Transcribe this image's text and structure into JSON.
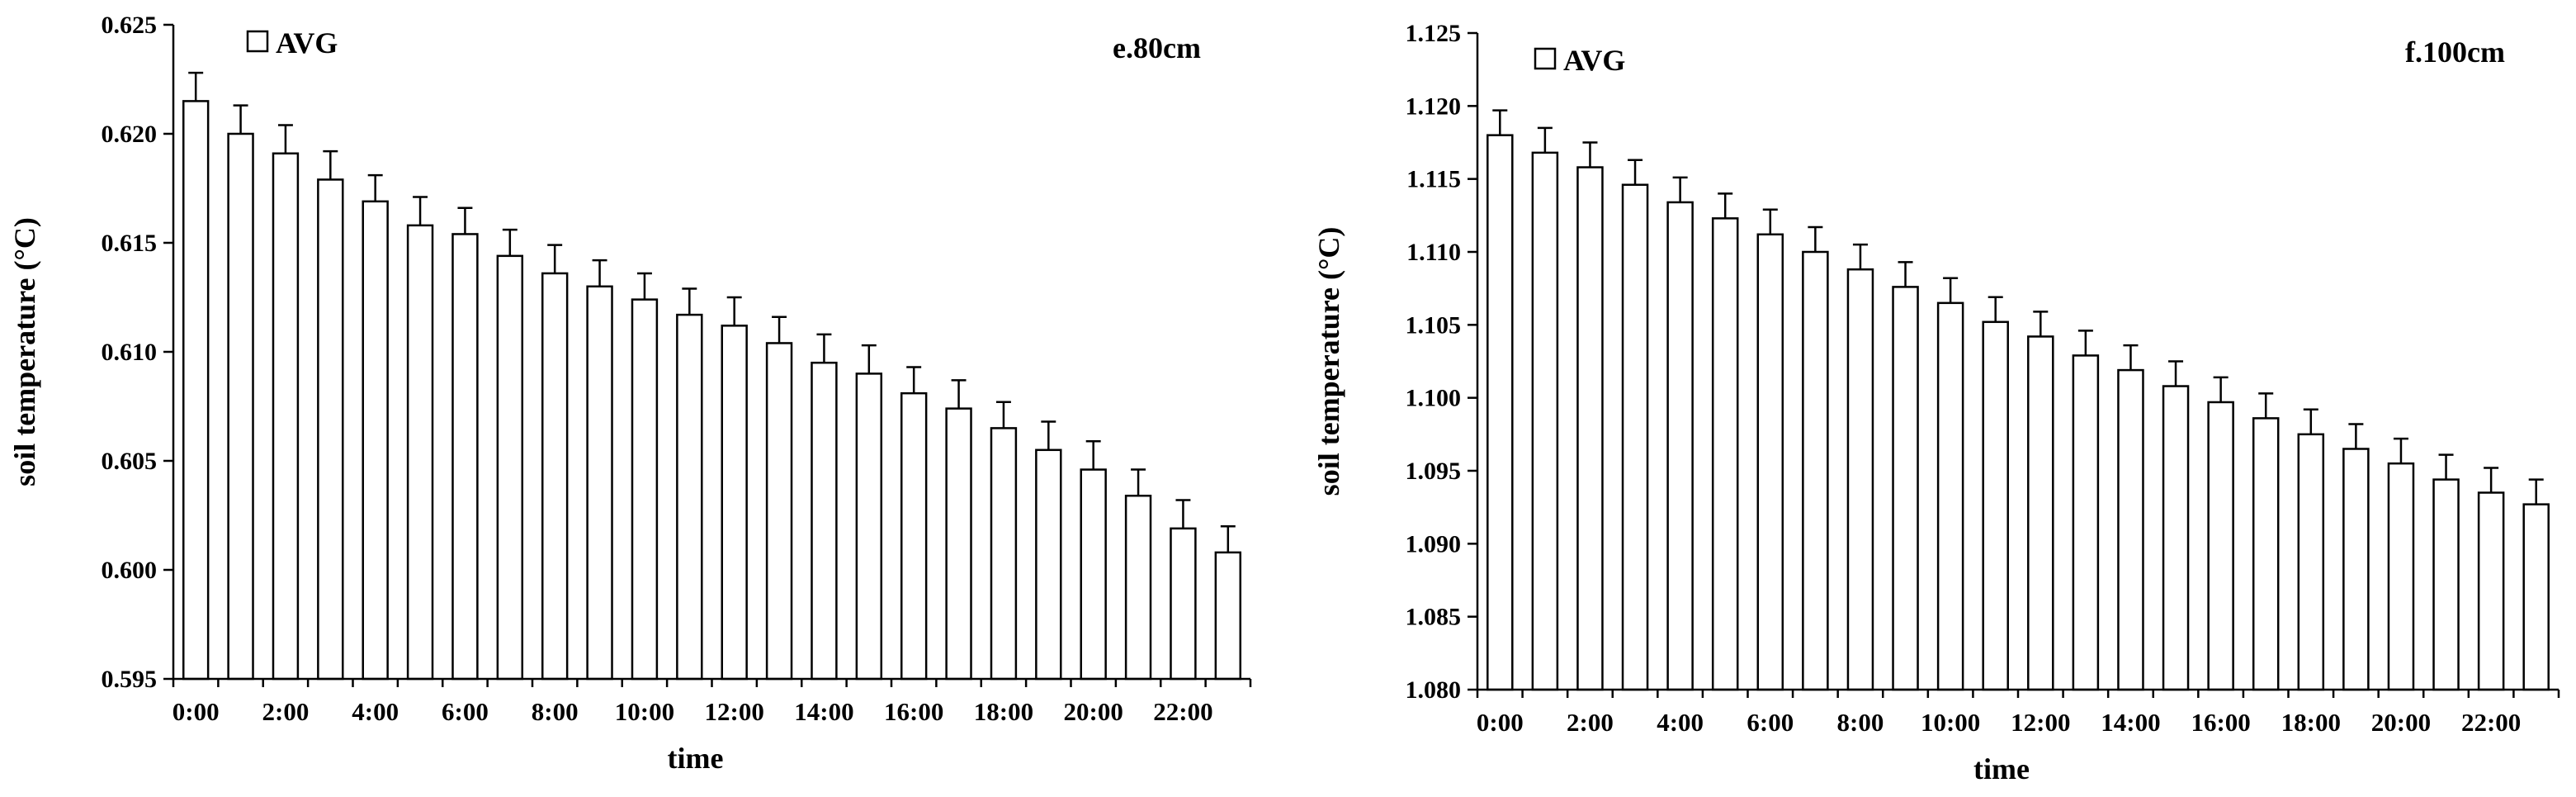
{
  "chart_data": [
    {
      "type": "bar",
      "panel_label": "e.80cm",
      "xlabel": "time",
      "ylabel": "soil temperature (°C)",
      "legend": [
        "AVG"
      ],
      "legend_position": "top-left",
      "ylim": [
        0.595,
        0.625
      ],
      "yticks": [
        "0.595",
        "0.600",
        "0.605",
        "0.610",
        "0.615",
        "0.620",
        "0.625"
      ],
      "xtick_labels": [
        "0:00",
        "2:00",
        "4:00",
        "6:00",
        "8:00",
        "10:00",
        "12:00",
        "14:00",
        "16:00",
        "18:00",
        "20:00",
        "22:00"
      ],
      "categories": [
        "0:00",
        "1:00",
        "2:00",
        "3:00",
        "4:00",
        "5:00",
        "6:00",
        "7:00",
        "8:00",
        "9:00",
        "10:00",
        "11:00",
        "12:00",
        "13:00",
        "14:00",
        "15:00",
        "16:00",
        "17:00",
        "18:00",
        "19:00",
        "20:00",
        "21:00",
        "22:00",
        "23:00"
      ],
      "series": [
        {
          "name": "AVG",
          "values": [
            0.6215,
            0.62,
            0.6191,
            0.6179,
            0.6169,
            0.6158,
            0.6154,
            0.6144,
            0.6136,
            0.613,
            0.6124,
            0.6117,
            0.6112,
            0.6104,
            0.6095,
            0.609,
            0.6081,
            0.6074,
            0.6065,
            0.6055,
            0.6046,
            0.6034,
            0.6019,
            0.6008
          ],
          "error": [
            0.0013,
            0.0013,
            0.0013,
            0.0013,
            0.0012,
            0.0013,
            0.0012,
            0.0012,
            0.0013,
            0.0012,
            0.0012,
            0.0012,
            0.0013,
            0.0012,
            0.0013,
            0.0013,
            0.0012,
            0.0013,
            0.0012,
            0.0013,
            0.0013,
            0.0012,
            0.0013,
            0.0012
          ]
        }
      ],
      "grid": false
    },
    {
      "type": "bar",
      "panel_label": "f.100cm",
      "xlabel": "time",
      "ylabel": "soil temperature (°C)",
      "legend": [
        "AVG"
      ],
      "legend_position": "top-left",
      "ylim": [
        1.08,
        1.125
      ],
      "yticks": [
        "1.080",
        "1.085",
        "1.090",
        "1.095",
        "1.100",
        "1.105",
        "1.110",
        "1.115",
        "1.120",
        "1.125"
      ],
      "xtick_labels": [
        "0:00",
        "2:00",
        "4:00",
        "6:00",
        "8:00",
        "10:00",
        "12:00",
        "14:00",
        "16:00",
        "18:00",
        "20:00",
        "22:00"
      ],
      "categories": [
        "0:00",
        "1:00",
        "2:00",
        "3:00",
        "4:00",
        "5:00",
        "6:00",
        "7:00",
        "8:00",
        "9:00",
        "10:00",
        "11:00",
        "12:00",
        "13:00",
        "14:00",
        "15:00",
        "16:00",
        "17:00",
        "18:00",
        "19:00",
        "20:00",
        "21:00",
        "22:00",
        "23:00"
      ],
      "series": [
        {
          "name": "AVG",
          "values": [
            1.118,
            1.1168,
            1.1158,
            1.1146,
            1.1134,
            1.1123,
            1.1112,
            1.11,
            1.1088,
            1.1076,
            1.1065,
            1.1052,
            1.1042,
            1.1029,
            1.1019,
            1.1008,
            1.0997,
            1.0986,
            1.0975,
            1.0965,
            1.0955,
            1.0944,
            1.0935,
            1.0927
          ],
          "error": [
            0.0017,
            0.0017,
            0.0017,
            0.0017,
            0.0017,
            0.0017,
            0.0017,
            0.0017,
            0.0017,
            0.0017,
            0.0017,
            0.0017,
            0.0017,
            0.0017,
            0.0017,
            0.0017,
            0.0017,
            0.0017,
            0.0017,
            0.0017,
            0.0017,
            0.0017,
            0.0017,
            0.0017
          ]
        }
      ],
      "grid": false
    }
  ]
}
